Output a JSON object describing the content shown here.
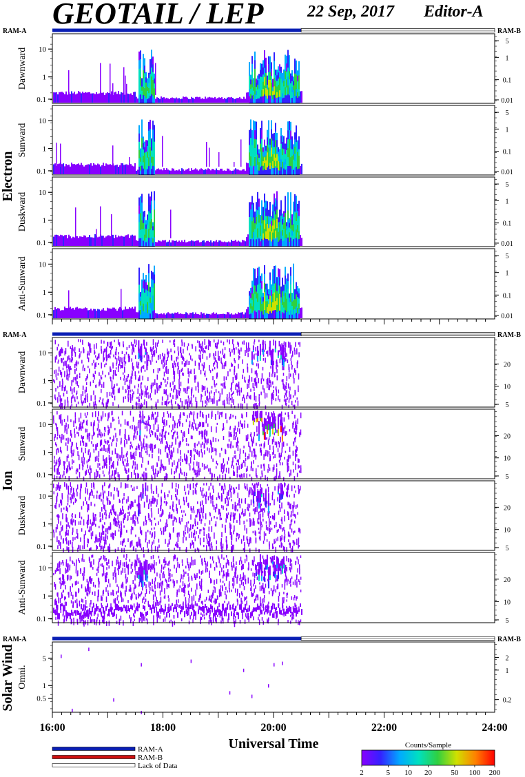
{
  "header": {
    "title": "GEOTAIL / LEP",
    "date": "22 Sep, 2017",
    "editor": "Editor-A"
  },
  "ram_labels": {
    "ram_a": "RAM-A",
    "ram_b": "RAM-B"
  },
  "colors": {
    "ram_a": "#0a1fb4",
    "ram_b": "#d01010",
    "lack_of_data": "#ffffff",
    "colorbar": [
      "#8800ff",
      "#3322ff",
      "#00aaff",
      "#00e0c0",
      "#30d040",
      "#d0e000",
      "#ff8000",
      "#ff0000"
    ]
  },
  "chart_data": {
    "type": "heatmap",
    "xlabel": "Universal Time",
    "x_ticks": [
      "16:00",
      "18:00",
      "20:00",
      "22:00",
      "24:00"
    ],
    "x_range": [
      "16:00",
      "24:00"
    ],
    "data_coverage_end": "20:30",
    "ram_mode": "RAM-A for 16:00–20:30, Lack of Data for 20:30–24:00",
    "groups": [
      {
        "name": "Electron",
        "panels": [
          {
            "name": "Dawnward",
            "left_ticks": [
              "10",
              "1",
              "0.1"
            ],
            "right_ticks": [
              "5",
              "1",
              "0.1",
              "0.01"
            ]
          },
          {
            "name": "Sunward",
            "left_ticks": [
              "10",
              "1",
              "0.1"
            ],
            "right_ticks": [
              "5",
              "1",
              "0.1",
              "0.01"
            ]
          },
          {
            "name": "Duskward",
            "left_ticks": [
              "10",
              "1",
              "0.1"
            ],
            "right_ticks": [
              "5",
              "1",
              "0.1",
              "0.01"
            ]
          },
          {
            "name": "Anti-Sunward",
            "left_ticks": [
              "10",
              "1",
              "0.1"
            ],
            "right_ticks": [
              "5",
              "1",
              "0.1",
              "0.01"
            ]
          }
        ]
      },
      {
        "name": "Ion",
        "panels": [
          {
            "name": "Dawnward",
            "left_ticks": [
              "10",
              "1",
              "0.1"
            ],
            "right_ticks": [
              "20",
              "10",
              "5"
            ]
          },
          {
            "name": "Sunward",
            "left_ticks": [
              "10",
              "1",
              "0.1"
            ],
            "right_ticks": [
              "20",
              "10",
              "5"
            ]
          },
          {
            "name": "Duskward",
            "left_ticks": [
              "10",
              "1",
              "0.1"
            ],
            "right_ticks": [
              "20",
              "10",
              "5"
            ]
          },
          {
            "name": "Anti-Sunward",
            "left_ticks": [
              "10",
              "1",
              "0.1"
            ],
            "right_ticks": [
              "20",
              "10",
              "5"
            ]
          }
        ]
      },
      {
        "name": "Solar Wind",
        "panels": [
          {
            "name": "Omni.",
            "left_ticks": [
              "5",
              "1",
              "0.5"
            ],
            "right_ticks": [
              "2",
              "1",
              "0.2"
            ]
          }
        ]
      }
    ],
    "colorbar": {
      "title": "Counts/Sample",
      "ticks": [
        "2",
        "5",
        "10",
        "20",
        "50",
        "100",
        "200"
      ],
      "range": [
        2,
        200
      ],
      "scale": "log"
    },
    "legend": [
      "RAM-A",
      "RAM-B",
      "Lack of Data"
    ]
  }
}
